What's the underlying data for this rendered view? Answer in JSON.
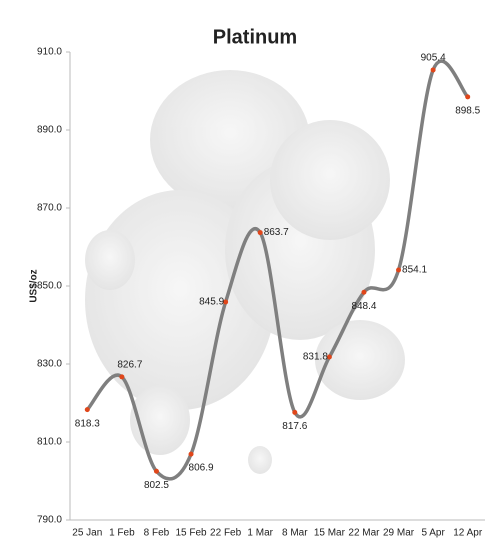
{
  "chart_data": {
    "type": "line",
    "title": "Platinum",
    "y_label": "US$/oz",
    "categories": [
      "25 Jan",
      "1 Feb",
      "8 Feb",
      "15 Feb",
      "22 Feb",
      "1 Mar",
      "8 Mar",
      "15 Mar",
      "22 Mar",
      "29 Mar",
      "5 Apr",
      "12 Apr"
    ],
    "values": [
      818.3,
      826.7,
      802.5,
      806.9,
      845.9,
      863.7,
      817.6,
      831.8,
      848.4,
      854.1,
      905.4,
      898.5
    ],
    "color": "#7f7f7f",
    "marker_color": "#e0461a",
    "ylim": [
      790,
      910
    ],
    "yticks": [
      {
        "value": 790,
        "label": "790.0"
      },
      {
        "value": 810,
        "label": "810.0"
      },
      {
        "value": 830,
        "label": "830.0"
      },
      {
        "value": 850,
        "label": "850.0"
      },
      {
        "value": 870,
        "label": "870.0"
      },
      {
        "value": 890,
        "label": "890.0"
      },
      {
        "value": 910,
        "label": "910.0"
      }
    ],
    "grid": false
  }
}
